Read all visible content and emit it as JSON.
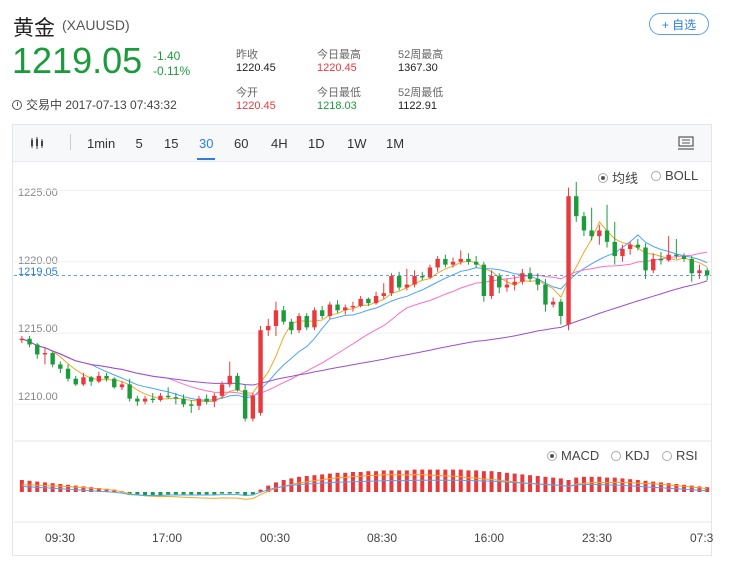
{
  "header": {
    "name": "黄金",
    "code": "(XAUUSD)",
    "follow_label": "+ 自选",
    "price": "1219.05",
    "change": "-1.40",
    "change_pct": "-0.11%",
    "status_time": "交易中 2017-07-13 07:43:32"
  },
  "stats": {
    "prev_close_label": "昨收",
    "prev_close": "1220.45",
    "open_label": "今开",
    "open": "1220.45",
    "high_label": "今日最高",
    "high": "1220.45",
    "low_label": "今日最低",
    "low": "1218.03",
    "w52_high_label": "52周最高",
    "w52_high": "1367.30",
    "w52_low_label": "52周最低",
    "w52_low": "1122.91"
  },
  "toolbar": {
    "intervals": [
      "1min",
      "5",
      "15",
      "30",
      "60",
      "4H",
      "1D",
      "1W",
      "1M"
    ],
    "active": "30"
  },
  "overlays": {
    "ma": "均线",
    "boll": "BOLL",
    "selected": "均线"
  },
  "indicators": {
    "macd": "MACD",
    "kdj": "KDJ",
    "rsi": "RSI",
    "selected": "MACD"
  },
  "colors": {
    "up": "#e8393d",
    "down": "#1a9c3c",
    "accent": "#2f7fd8",
    "ma5": "#f5a623",
    "ma10": "#4aa3ff",
    "ma20": "#ff6ec7",
    "ma60": "#9b4fcf"
  },
  "chart_data": {
    "type": "candlestick",
    "interval": "30",
    "ylim": [
      1207.5,
      1227.0
    ],
    "y_ticks": [
      "1225.00",
      "1220.00",
      "1215.00",
      "1210.00"
    ],
    "current_price": "1219.05",
    "x_ticks": [
      "09:30",
      "17:00",
      "00:30",
      "08:30",
      "16:00",
      "23:30",
      "07:3"
    ],
    "candles": [
      [
        1214.5,
        1214.8,
        1214.3,
        1214.6
      ],
      [
        1214.6,
        1214.8,
        1214.0,
        1214.2
      ],
      [
        1214.2,
        1214.3,
        1213.2,
        1213.5
      ],
      [
        1213.5,
        1214.0,
        1212.8,
        1213.6
      ],
      [
        1213.6,
        1213.7,
        1212.6,
        1212.8
      ],
      [
        1212.8,
        1213.0,
        1212.2,
        1212.5
      ],
      [
        1212.5,
        1212.8,
        1211.6,
        1211.8
      ],
      [
        1211.8,
        1212.0,
        1211.3,
        1211.4
      ],
      [
        1211.4,
        1212.2,
        1211.3,
        1211.9
      ],
      [
        1211.9,
        1212.0,
        1211.3,
        1211.6
      ],
      [
        1211.6,
        1212.3,
        1211.5,
        1212.0
      ],
      [
        1212.0,
        1212.2,
        1211.6,
        1211.8
      ],
      [
        1211.8,
        1211.9,
        1211.1,
        1211.2
      ],
      [
        1211.2,
        1211.6,
        1211.0,
        1211.4
      ],
      [
        1211.4,
        1211.8,
        1210.2,
        1210.4
      ],
      [
        1210.4,
        1210.6,
        1209.9,
        1210.2
      ],
      [
        1210.2,
        1210.6,
        1210.0,
        1210.4
      ],
      [
        1210.4,
        1210.8,
        1210.1,
        1210.3
      ],
      [
        1210.3,
        1210.8,
        1210.2,
        1210.6
      ],
      [
        1210.6,
        1211.2,
        1210.4,
        1210.5
      ],
      [
        1210.5,
        1210.8,
        1210.0,
        1210.4
      ],
      [
        1210.4,
        1210.7,
        1209.8,
        1210.0
      ],
      [
        1210.0,
        1210.3,
        1209.4,
        1209.9
      ],
      [
        1209.9,
        1210.6,
        1209.6,
        1210.4
      ],
      [
        1210.4,
        1210.7,
        1210.0,
        1210.2
      ],
      [
        1210.2,
        1210.8,
        1209.8,
        1210.6
      ],
      [
        1210.6,
        1211.6,
        1210.4,
        1211.4
      ],
      [
        1211.4,
        1213.0,
        1211.2,
        1212.0
      ],
      [
        1212.0,
        1212.2,
        1210.9,
        1211.0
      ],
      [
        1211.0,
        1211.4,
        1208.8,
        1209.0
      ],
      [
        1209.0,
        1210.8,
        1208.8,
        1210.6
      ],
      [
        1209.4,
        1215.5,
        1209.2,
        1215.2
      ],
      [
        1215.2,
        1216.0,
        1214.8,
        1215.5
      ],
      [
        1215.5,
        1217.2,
        1214.8,
        1216.6
      ],
      [
        1216.6,
        1216.9,
        1215.6,
        1215.8
      ],
      [
        1215.8,
        1216.0,
        1214.9,
        1215.2
      ],
      [
        1215.2,
        1216.4,
        1215.0,
        1216.2
      ],
      [
        1216.2,
        1216.4,
        1215.2,
        1215.4
      ],
      [
        1215.4,
        1216.8,
        1215.2,
        1216.6
      ],
      [
        1216.6,
        1216.9,
        1216.0,
        1216.2
      ],
      [
        1216.2,
        1217.2,
        1216.0,
        1217.0
      ],
      [
        1217.0,
        1217.3,
        1216.4,
        1216.6
      ],
      [
        1216.6,
        1217.0,
        1216.3,
        1216.8
      ],
      [
        1216.8,
        1217.2,
        1216.5,
        1216.9
      ],
      [
        1216.9,
        1217.6,
        1216.8,
        1217.4
      ],
      [
        1217.4,
        1217.5,
        1216.9,
        1217.1
      ],
      [
        1217.1,
        1217.9,
        1217.0,
        1217.6
      ],
      [
        1217.6,
        1218.5,
        1217.4,
        1217.8
      ],
      [
        1217.8,
        1219.2,
        1217.6,
        1219.0
      ],
      [
        1219.0,
        1219.3,
        1218.0,
        1218.2
      ],
      [
        1218.2,
        1219.5,
        1218.0,
        1218.4
      ],
      [
        1218.4,
        1219.4,
        1218.2,
        1219.0
      ],
      [
        1219.0,
        1219.3,
        1218.7,
        1218.9
      ],
      [
        1218.9,
        1219.8,
        1218.8,
        1219.6
      ],
      [
        1219.6,
        1220.4,
        1219.3,
        1220.2
      ],
      [
        1220.2,
        1220.5,
        1219.6,
        1219.8
      ],
      [
        1219.8,
        1220.3,
        1219.6,
        1220.0
      ],
      [
        1220.0,
        1220.8,
        1219.8,
        1220.2
      ],
      [
        1220.2,
        1220.6,
        1219.8,
        1220.0
      ],
      [
        1220.0,
        1220.4,
        1219.6,
        1219.8
      ],
      [
        1219.8,
        1220.0,
        1217.2,
        1217.6
      ],
      [
        1217.6,
        1219.4,
        1217.4,
        1219.0
      ],
      [
        1219.0,
        1219.2,
        1217.8,
        1218.2
      ],
      [
        1218.2,
        1218.8,
        1217.9,
        1218.4
      ],
      [
        1218.4,
        1219.0,
        1218.0,
        1218.6
      ],
      [
        1218.6,
        1219.5,
        1218.4,
        1219.2
      ],
      [
        1219.2,
        1219.6,
        1218.6,
        1218.8
      ],
      [
        1218.8,
        1219.2,
        1218.0,
        1218.4
      ],
      [
        1218.4,
        1218.8,
        1216.5,
        1217.0
      ],
      [
        1217.0,
        1217.5,
        1216.8,
        1217.2
      ],
      [
        1217.2,
        1217.4,
        1215.6,
        1216.2
      ],
      [
        1215.6,
        1225.2,
        1215.2,
        1224.6
      ],
      [
        1224.6,
        1225.6,
        1222.8,
        1223.2
      ],
      [
        1223.2,
        1223.5,
        1221.8,
        1222.2
      ],
      [
        1222.2,
        1223.8,
        1221.5,
        1221.8
      ],
      [
        1221.8,
        1222.6,
        1221.2,
        1222.2
      ],
      [
        1222.2,
        1224.0,
        1221.0,
        1221.4
      ],
      [
        1221.4,
        1222.8,
        1219.8,
        1220.4
      ],
      [
        1220.4,
        1221.2,
        1220.0,
        1220.9
      ],
      [
        1220.9,
        1221.4,
        1220.5,
        1221.2
      ],
      [
        1221.2,
        1221.6,
        1220.8,
        1221.0
      ],
      [
        1221.0,
        1221.3,
        1218.8,
        1219.4
      ],
      [
        1219.4,
        1220.6,
        1219.2,
        1220.2
      ],
      [
        1220.2,
        1220.7,
        1219.8,
        1220.1
      ],
      [
        1220.1,
        1221.8,
        1220.0,
        1220.5
      ],
      [
        1220.5,
        1221.6,
        1220.2,
        1220.4
      ],
      [
        1220.4,
        1220.6,
        1220.0,
        1220.2
      ],
      [
        1220.2,
        1220.4,
        1218.6,
        1219.2
      ],
      [
        1219.2,
        1219.8,
        1218.8,
        1219.4
      ],
      [
        1219.4,
        1219.6,
        1218.7,
        1219.05
      ]
    ],
    "macd_hist": [
      1.5,
      1.4,
      1.3,
      1.2,
      1.1,
      1.0,
      0.9,
      0.8,
      0.7,
      0.6,
      0.5,
      0.4,
      0.3,
      0.1,
      -0.2,
      -0.3,
      -0.4,
      -0.4,
      -0.4,
      -0.3,
      -0.3,
      -0.3,
      -0.3,
      -0.3,
      -0.3,
      -0.3,
      -0.2,
      -0.2,
      -0.2,
      -0.4,
      -0.3,
      0.3,
      0.8,
      1.2,
      1.5,
      1.7,
      1.9,
      2.0,
      2.1,
      2.2,
      2.3,
      2.4,
      2.4,
      2.5,
      2.5,
      2.6,
      2.6,
      2.7,
      2.7,
      2.7,
      2.7,
      2.8,
      2.8,
      2.8,
      2.8,
      2.8,
      2.8,
      2.8,
      2.7,
      2.7,
      2.6,
      2.6,
      2.5,
      2.4,
      2.3,
      2.2,
      2.1,
      2.0,
      1.9,
      1.8,
      1.7,
      1.5,
      1.8,
      1.9,
      1.9,
      1.9,
      1.8,
      1.8,
      1.7,
      1.6,
      1.5,
      1.4,
      1.3,
      1.2,
      1.1,
      1.0,
      0.9,
      0.8,
      0.7,
      0.6
    ],
    "series": [
      {
        "name": "MA5"
      },
      {
        "name": "MA10"
      },
      {
        "name": "MA20"
      },
      {
        "name": "MA60"
      }
    ]
  }
}
